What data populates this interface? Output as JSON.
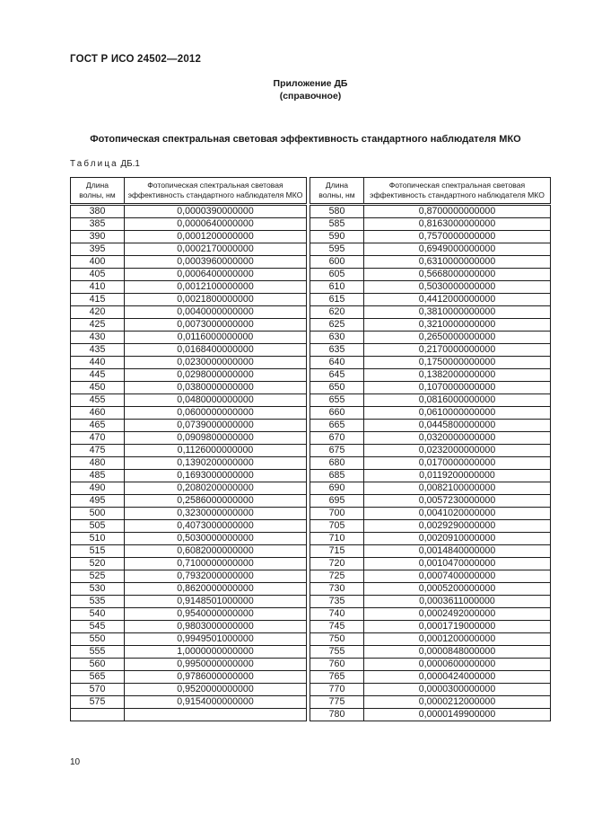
{
  "page": {
    "doc_header": "ГОСТ Р ИСО 24502—2012",
    "appendix_title": "Приложение ДБ",
    "appendix_subtitle": "(справочное)",
    "main_title": "Фотопическая спектральная световая эффективность стандартного наблюдателя МКО",
    "table_label_word": "Таблица",
    "table_label_number": "ДБ.1",
    "page_number": "10"
  },
  "table": {
    "header_wavelength": "Длина\nволны, нм",
    "header_efficiency": "Фотопическая спектральная световая\nэффективность стандартного наблюдателя МКО",
    "left_rows": [
      [
        "380",
        "0,0000390000000"
      ],
      [
        "385",
        "0,0000640000000"
      ],
      [
        "390",
        "0,0001200000000"
      ],
      [
        "395",
        "0,0002170000000"
      ],
      [
        "400",
        "0,0003960000000"
      ],
      [
        "405",
        "0,0006400000000"
      ],
      [
        "410",
        "0,0012100000000"
      ],
      [
        "415",
        "0,0021800000000"
      ],
      [
        "420",
        "0,0040000000000"
      ],
      [
        "425",
        "0,0073000000000"
      ],
      [
        "430",
        "0,0116000000000"
      ],
      [
        "435",
        "0,0168400000000"
      ],
      [
        "440",
        "0,0230000000000"
      ],
      [
        "445",
        "0,0298000000000"
      ],
      [
        "450",
        "0,0380000000000"
      ],
      [
        "455",
        "0,0480000000000"
      ],
      [
        "460",
        "0,0600000000000"
      ],
      [
        "465",
        "0,0739000000000"
      ],
      [
        "470",
        "0,0909800000000"
      ],
      [
        "475",
        "0,1126000000000"
      ],
      [
        "480",
        "0,1390200000000"
      ],
      [
        "485",
        "0,1693000000000"
      ],
      [
        "490",
        "0,2080200000000"
      ],
      [
        "495",
        "0,2586000000000"
      ],
      [
        "500",
        "0,3230000000000"
      ],
      [
        "505",
        "0,4073000000000"
      ],
      [
        "510",
        "0,5030000000000"
      ],
      [
        "515",
        "0,6082000000000"
      ],
      [
        "520",
        "0,7100000000000"
      ],
      [
        "525",
        "0,7932000000000"
      ],
      [
        "530",
        "0,8620000000000"
      ],
      [
        "535",
        "0,9148501000000"
      ],
      [
        "540",
        "0,9540000000000"
      ],
      [
        "545",
        "0,9803000000000"
      ],
      [
        "550",
        "0,9949501000000"
      ],
      [
        "555",
        "1,0000000000000"
      ],
      [
        "560",
        "0,9950000000000"
      ],
      [
        "565",
        "0,9786000000000"
      ],
      [
        "570",
        "0,9520000000000"
      ],
      [
        "575",
        "0,9154000000000"
      ],
      [
        "",
        ""
      ]
    ],
    "right_rows": [
      [
        "580",
        "0,8700000000000"
      ],
      [
        "585",
        "0,8163000000000"
      ],
      [
        "590",
        "0,7570000000000"
      ],
      [
        "595",
        "0,6949000000000"
      ],
      [
        "600",
        "0,6310000000000"
      ],
      [
        "605",
        "0,5668000000000"
      ],
      [
        "610",
        "0,5030000000000"
      ],
      [
        "615",
        "0,4412000000000"
      ],
      [
        "620",
        "0,3810000000000"
      ],
      [
        "625",
        "0,3210000000000"
      ],
      [
        "630",
        "0,2650000000000"
      ],
      [
        "635",
        "0,2170000000000"
      ],
      [
        "640",
        "0,1750000000000"
      ],
      [
        "645",
        "0,1382000000000"
      ],
      [
        "650",
        "0,1070000000000"
      ],
      [
        "655",
        "0,0816000000000"
      ],
      [
        "660",
        "0,0610000000000"
      ],
      [
        "665",
        "0,0445800000000"
      ],
      [
        "670",
        "0,0320000000000"
      ],
      [
        "675",
        "0,0232000000000"
      ],
      [
        "680",
        "0,0170000000000"
      ],
      [
        "685",
        "0,0119200000000"
      ],
      [
        "690",
        "0,0082100000000"
      ],
      [
        "695",
        "0,0057230000000"
      ],
      [
        "700",
        "0,0041020000000"
      ],
      [
        "705",
        "0,0029290000000"
      ],
      [
        "710",
        "0,0020910000000"
      ],
      [
        "715",
        "0,0014840000000"
      ],
      [
        "720",
        "0,0010470000000"
      ],
      [
        "725",
        "0,0007400000000"
      ],
      [
        "730",
        "0,0005200000000"
      ],
      [
        "735",
        "0,0003611000000"
      ],
      [
        "740",
        "0,0002492000000"
      ],
      [
        "745",
        "0,0001719000000"
      ],
      [
        "750",
        "0,0001200000000"
      ],
      [
        "755",
        "0,0000848000000"
      ],
      [
        "760",
        "0,0000600000000"
      ],
      [
        "765",
        "0,0000424000000"
      ],
      [
        "770",
        "0,0000300000000"
      ],
      [
        "775",
        "0,0000212000000"
      ],
      [
        "780",
        "0,0000149900000"
      ]
    ]
  }
}
